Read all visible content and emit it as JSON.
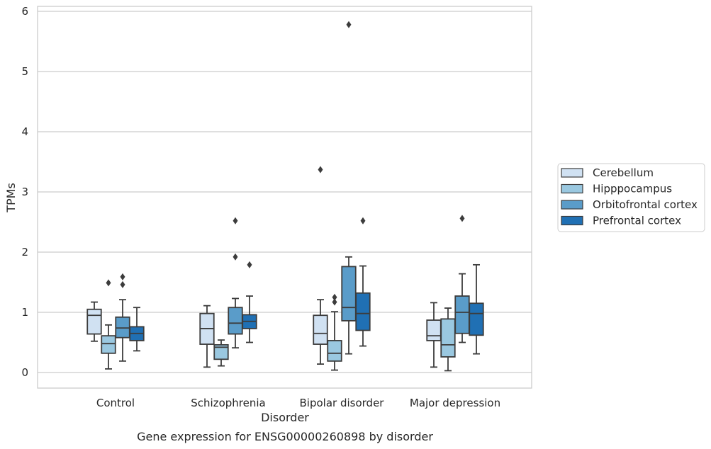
{
  "caption": "Gene expression for ENSG00000260898 by disorder",
  "chart_data": {
    "type": "box",
    "xlabel": "Disorder",
    "ylabel": "TPMs",
    "ylim": [
      -0.25,
      6.1
    ],
    "yticks": [
      0,
      1,
      2,
      3,
      4,
      5,
      6
    ],
    "grid": "horizontal",
    "legend_position": "right",
    "categories": [
      "Control",
      "Schizophrenia",
      "Bipolar disorder",
      "Major depression"
    ],
    "series": [
      {
        "name": "Cerebellum",
        "color": "#d0e1f2",
        "boxes": [
          {
            "whislo": 0.52,
            "q1": 0.64,
            "med": 0.95,
            "q3": 1.05,
            "whishi": 1.17,
            "fliers": []
          },
          {
            "whislo": 0.09,
            "q1": 0.47,
            "med": 0.73,
            "q3": 0.98,
            "whishi": 1.11,
            "fliers": []
          },
          {
            "whislo": 0.14,
            "q1": 0.47,
            "med": 0.65,
            "q3": 0.95,
            "whishi": 1.21,
            "fliers": [
              3.37
            ]
          },
          {
            "whislo": 0.09,
            "q1": 0.53,
            "med": 0.61,
            "q3": 0.87,
            "whishi": 1.16,
            "fliers": []
          }
        ]
      },
      {
        "name": "Hipppocampus",
        "color": "#9ac8e0",
        "boxes": [
          {
            "whislo": 0.06,
            "q1": 0.32,
            "med": 0.48,
            "q3": 0.61,
            "whishi": 0.79,
            "fliers": [
              1.49
            ]
          },
          {
            "whislo": 0.11,
            "q1": 0.22,
            "med": 0.42,
            "q3": 0.46,
            "whishi": 0.54,
            "fliers": []
          },
          {
            "whislo": 0.04,
            "q1": 0.19,
            "med": 0.32,
            "q3": 0.53,
            "whishi": 1.01,
            "fliers": [
              1.17,
              1.25
            ]
          },
          {
            "whislo": 0.03,
            "q1": 0.26,
            "med": 0.46,
            "q3": 0.89,
            "whishi": 1.07,
            "fliers": []
          }
        ]
      },
      {
        "name": "Orbitofrontal cortex",
        "color": "#5a9cc9",
        "boxes": [
          {
            "whislo": 0.19,
            "q1": 0.58,
            "med": 0.74,
            "q3": 0.92,
            "whishi": 1.21,
            "fliers": [
              1.46,
              1.59
            ]
          },
          {
            "whislo": 0.41,
            "q1": 0.64,
            "med": 0.82,
            "q3": 1.08,
            "whishi": 1.23,
            "fliers": [
              1.92,
              2.52
            ]
          },
          {
            "whislo": 0.31,
            "q1": 0.86,
            "med": 1.08,
            "q3": 1.76,
            "whishi": 1.92,
            "fliers": [
              5.78
            ]
          },
          {
            "whislo": 0.5,
            "q1": 0.65,
            "med": 1.0,
            "q3": 1.27,
            "whishi": 1.64,
            "fliers": [
              2.56
            ]
          }
        ]
      },
      {
        "name": "Prefrontal cortex",
        "color": "#2070b4",
        "boxes": [
          {
            "whislo": 0.36,
            "q1": 0.53,
            "med": 0.65,
            "q3": 0.76,
            "whishi": 1.08,
            "fliers": []
          },
          {
            "whislo": 0.5,
            "q1": 0.73,
            "med": 0.85,
            "q3": 0.96,
            "whishi": 1.27,
            "fliers": [
              1.79
            ]
          },
          {
            "whislo": 0.44,
            "q1": 0.7,
            "med": 0.98,
            "q3": 1.32,
            "whishi": 1.77,
            "fliers": [
              2.52
            ]
          },
          {
            "whislo": 0.31,
            "q1": 0.62,
            "med": 0.98,
            "q3": 1.15,
            "whishi": 1.79,
            "fliers": []
          }
        ]
      }
    ]
  }
}
